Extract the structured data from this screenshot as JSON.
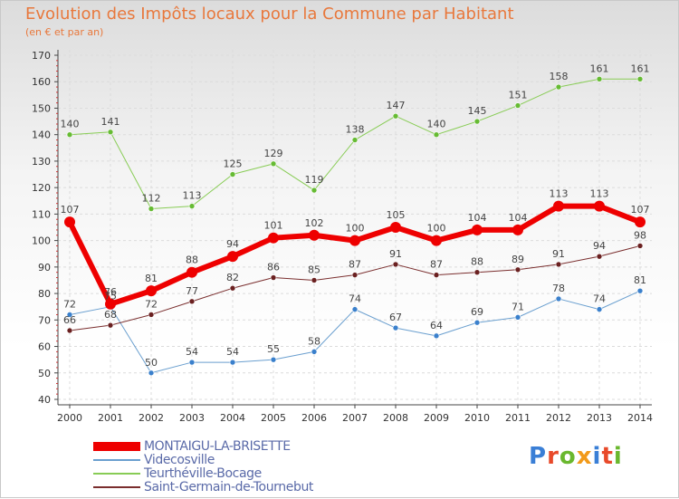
{
  "title": "Evolution des Impôts locaux pour la Commune par Habitant",
  "subtitle": "(en € et par an)",
  "logo": {
    "text": "Proxiti",
    "colors": [
      "#3a7fd6",
      "#e84a2a",
      "#6ab82e",
      "#f29a1a",
      "#3a7fd6",
      "#e84a2a",
      "#6ab82e"
    ]
  },
  "chart_data": {
    "type": "line",
    "title": "Evolution des Impôts locaux pour la Commune par Habitant",
    "subtitle": "(en € et par an)",
    "xlabel": "",
    "ylabel": "",
    "ylim": [
      40,
      170
    ],
    "yticks": [
      40,
      50,
      60,
      70,
      80,
      90,
      100,
      110,
      120,
      130,
      140,
      150,
      160,
      170
    ],
    "categories": [
      "2000",
      "2001",
      "2002",
      "2003",
      "2004",
      "2005",
      "2006",
      "2007",
      "2008",
      "2009",
      "2010",
      "2011",
      "2012",
      "2013",
      "2014"
    ],
    "grid": true,
    "legend_position": "bottom-left",
    "series": [
      {
        "name": "Teurthéville-Bocage",
        "color": "#88cc55",
        "point_color": "#66bb33",
        "width": 1,
        "marker": 3,
        "values": [
          140,
          141,
          112,
          113,
          125,
          129,
          119,
          138,
          147,
          140,
          145,
          151,
          158,
          161,
          161
        ]
      },
      {
        "name": "Videcosville",
        "color": "#6a9fcf",
        "point_color": "#3a80cc",
        "width": 1,
        "marker": 3,
        "values": [
          72,
          75,
          50,
          54,
          54,
          55,
          58,
          74,
          67,
          64,
          69,
          71,
          78,
          74,
          81
        ]
      },
      {
        "name": "Saint-Germain-de-Tournebut",
        "color": "#7a2e2e",
        "point_color": "#6a2020",
        "width": 1,
        "marker": 3,
        "values": [
          66,
          68,
          72,
          77,
          82,
          86,
          85,
          87,
          91,
          87,
          88,
          89,
          91,
          94,
          98
        ]
      },
      {
        "name": "MONTAIGU-LA-BRISETTE",
        "color": "#ee0000",
        "point_color": "#ee0000",
        "width": 6,
        "marker": 6,
        "values": [
          107,
          76,
          81,
          88,
          94,
          101,
          102,
          100,
          105,
          100,
          104,
          104,
          113,
          113,
          107
        ]
      }
    ],
    "legend": [
      "MONTAIGU-LA-BRISETTE",
      "Videcosville",
      "Teurthéville-Bocage",
      "Saint-Germain-de-Tournebut"
    ]
  }
}
